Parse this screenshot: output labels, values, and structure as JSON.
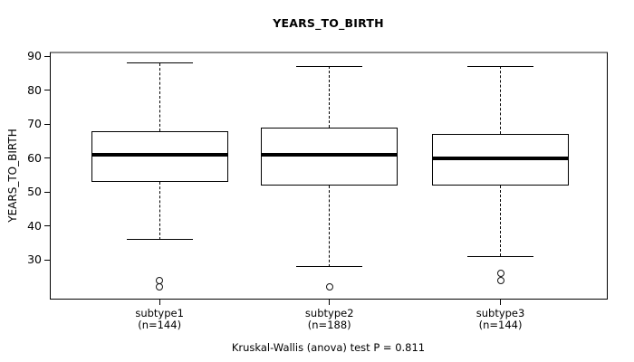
{
  "chart_data": {
    "type": "boxplot",
    "title": "YEARS_TO_BIRTH",
    "ylabel": "YEARS_TO_BIRTH",
    "annotation": "Kruskal-Wallis (anova) test P = 0.811",
    "p_value": 0.811,
    "categories": [
      "subtype1",
      "subtype2",
      "subtype3"
    ],
    "category_sublabels": [
      "(n=144)",
      "(n=188)",
      "(n=144)"
    ],
    "sample_sizes": [
      144,
      188,
      144
    ],
    "yticks": [
      30,
      40,
      50,
      60,
      70,
      80,
      90
    ],
    "ylim": [
      18.6,
      91.1
    ],
    "grid": false,
    "legend": "none",
    "boxes": [
      {
        "category": "subtype1",
        "n": 144,
        "whisker_low": 36,
        "q1": 53,
        "median": 61,
        "q3": 68,
        "whisker_high": 88,
        "outliers": [
          24,
          22
        ]
      },
      {
        "category": "subtype2",
        "n": 188,
        "whisker_low": 28,
        "q1": 52,
        "median": 61,
        "q3": 69,
        "whisker_high": 87,
        "outliers": [
          22
        ]
      },
      {
        "category": "subtype3",
        "n": 144,
        "whisker_low": 31,
        "q1": 52,
        "median": 60,
        "q3": 67,
        "whisker_high": 87,
        "outliers": [
          26,
          24
        ]
      }
    ],
    "layout": {
      "x_centers_pct": [
        19.7,
        50.2,
        80.9
      ],
      "box_width_pct": 24.6,
      "cap_width_pct": 11.9
    },
    "colors": {
      "stroke": "#000000",
      "background": "#ffffff",
      "frame_top": "#8c8c8c"
    }
  }
}
